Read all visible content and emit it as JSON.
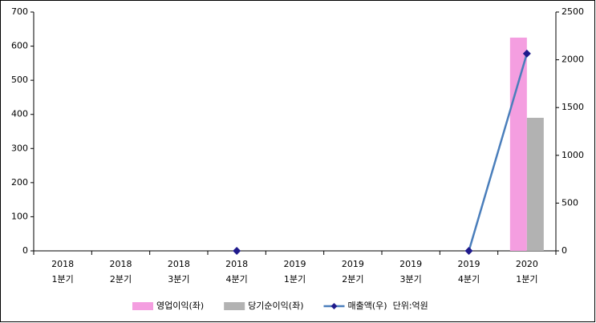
{
  "chart_data": {
    "type": "combo",
    "categories": [
      [
        "2018",
        "1분기"
      ],
      [
        "2018",
        "2분기"
      ],
      [
        "2018",
        "3분기"
      ],
      [
        "2018",
        "4분기"
      ],
      [
        "2019",
        "1분기"
      ],
      [
        "2019",
        "2분기"
      ],
      [
        "2019",
        "3분기"
      ],
      [
        "2019",
        "4분기"
      ],
      [
        "2020",
        "1분기"
      ]
    ],
    "series": [
      {
        "name": "영업이익(좌)",
        "color": "#f49ee0",
        "kind": "bar",
        "values": [
          null,
          null,
          null,
          null,
          null,
          null,
          null,
          null,
          625
        ]
      },
      {
        "name": "당기순이익(좌)",
        "color": "#b2b2b2",
        "kind": "bar",
        "values": [
          null,
          null,
          null,
          null,
          null,
          null,
          null,
          null,
          390
        ]
      },
      {
        "name": "매출액(우)",
        "color": "#4a7ebb",
        "marker_color": "#1f1a8c",
        "kind": "line",
        "axis": "y2",
        "values": [
          null,
          null,
          null,
          0,
          null,
          null,
          null,
          0,
          2065
        ]
      }
    ],
    "unit_note": "단위:억원",
    "ylim": [
      0,
      700
    ],
    "yticks": [
      0,
      100,
      200,
      300,
      400,
      500,
      600,
      700
    ],
    "y2lim": [
      0,
      2500
    ],
    "y2ticks": [
      0,
      500,
      1000,
      1500,
      2000,
      2500
    ]
  }
}
